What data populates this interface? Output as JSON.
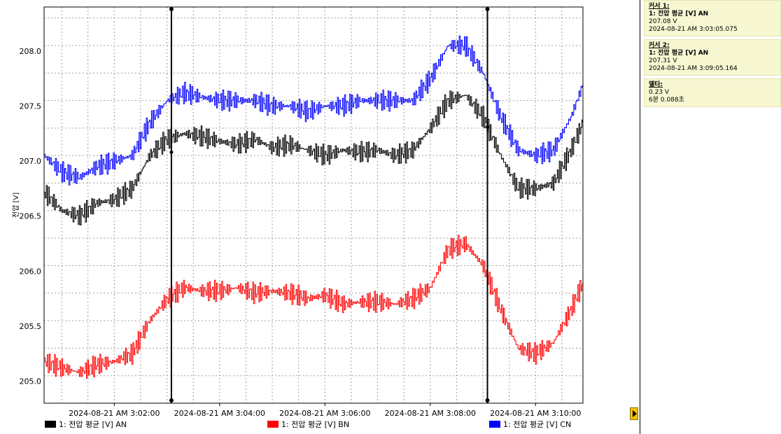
{
  "chart_data": {
    "type": "line",
    "ylabel": "전압 [V]",
    "ylim": [
      204.8,
      208.4
    ],
    "xlim": [
      "2024-08-21 AM 3:00:40",
      "2024-08-21 AM 3:10:54"
    ],
    "y_ticks": [
      "205.0",
      "205.5",
      "206.0",
      "206.5",
      "207.0",
      "207.5",
      "208.0"
    ],
    "x_ticks": [
      "2024-08-21 AM 3:02:00",
      "2024-08-21 AM 3:04:00",
      "2024-08-21 AM 3:06:00",
      "2024-08-21 AM 3:08:00",
      "2024-08-21 AM 3:10:00"
    ],
    "grid": true,
    "legend_position": "bottom",
    "x": [
      "3:00:40",
      "3:01:00",
      "3:01:20",
      "3:01:40",
      "3:02:00",
      "3:02:20",
      "3:02:40",
      "3:03:00",
      "3:03:20",
      "3:03:40",
      "3:04:00",
      "3:04:20",
      "3:04:40",
      "3:05:00",
      "3:05:20",
      "3:05:40",
      "3:06:00",
      "3:06:20",
      "3:06:40",
      "3:07:00",
      "3:07:20",
      "3:07:40",
      "3:08:00",
      "3:08:20",
      "3:08:40",
      "3:09:00",
      "3:09:20",
      "3:09:40",
      "3:10:00",
      "3:10:20",
      "3:10:40",
      "3:10:54"
    ],
    "series": [
      {
        "name": "1: 전압 평균 [V] AN",
        "color": "#000000",
        "values": [
          206.72,
          206.55,
          206.5,
          206.62,
          206.65,
          206.75,
          207.05,
          207.2,
          207.25,
          207.22,
          207.18,
          207.15,
          207.2,
          207.12,
          207.15,
          207.1,
          207.05,
          207.1,
          207.08,
          207.1,
          207.05,
          207.1,
          207.3,
          207.55,
          207.6,
          207.4,
          207.05,
          206.75,
          206.75,
          206.8,
          207.1,
          207.35
        ]
      },
      {
        "name": "1: 전압 평균 [V] BN",
        "color": "#ff0000",
        "values": [
          205.18,
          205.12,
          205.08,
          205.15,
          205.18,
          205.25,
          205.55,
          205.75,
          205.85,
          205.82,
          205.82,
          205.85,
          205.8,
          205.82,
          205.8,
          205.75,
          205.78,
          205.7,
          205.72,
          205.72,
          205.7,
          205.75,
          205.85,
          206.2,
          206.25,
          206.05,
          205.65,
          205.3,
          205.25,
          205.35,
          205.65,
          205.9
        ]
      },
      {
        "name": "1: 전압 평균 [V] CN",
        "color": "#0000ff",
        "values": [
          207.05,
          206.9,
          206.85,
          206.95,
          207.0,
          207.05,
          207.35,
          207.55,
          207.62,
          207.58,
          207.55,
          207.55,
          207.55,
          207.5,
          207.5,
          207.45,
          207.5,
          207.5,
          207.55,
          207.55,
          207.55,
          207.55,
          207.75,
          208.05,
          208.05,
          207.8,
          207.4,
          207.1,
          207.05,
          207.1,
          207.4,
          207.7
        ]
      }
    ],
    "cursors": [
      {
        "label": "커서 1",
        "time": "3:03:05.075",
        "value": 207.08
      },
      {
        "label": "커서 2",
        "time": "3:09:05.164",
        "value": 207.31
      }
    ]
  },
  "legend": [
    "1: 전압 평균 [V] AN",
    "1: 전압 평균 [V] BN",
    "1: 전압 평균 [V] CN"
  ],
  "info": {
    "c1_title": "커서 1:",
    "c1_series": "1: 전압 평균 [V] AN",
    "c1_value": "207.08 V",
    "c1_time": "2024-08-21 AM 3:03:05.075",
    "c2_title": "커서 2:",
    "c2_series": "1: 전압 평균 [V] AN",
    "c2_value": "207.31 V",
    "c2_time": "2024-08-21 AM 3:09:05.164",
    "delta_title": "델타:",
    "delta_value": "0.23 V",
    "delta_time": "6분 0.088초"
  },
  "colors": {
    "grid": "#a0a0a0",
    "panel_bg": "#f7f7d2",
    "arrow": "#f1c300"
  }
}
